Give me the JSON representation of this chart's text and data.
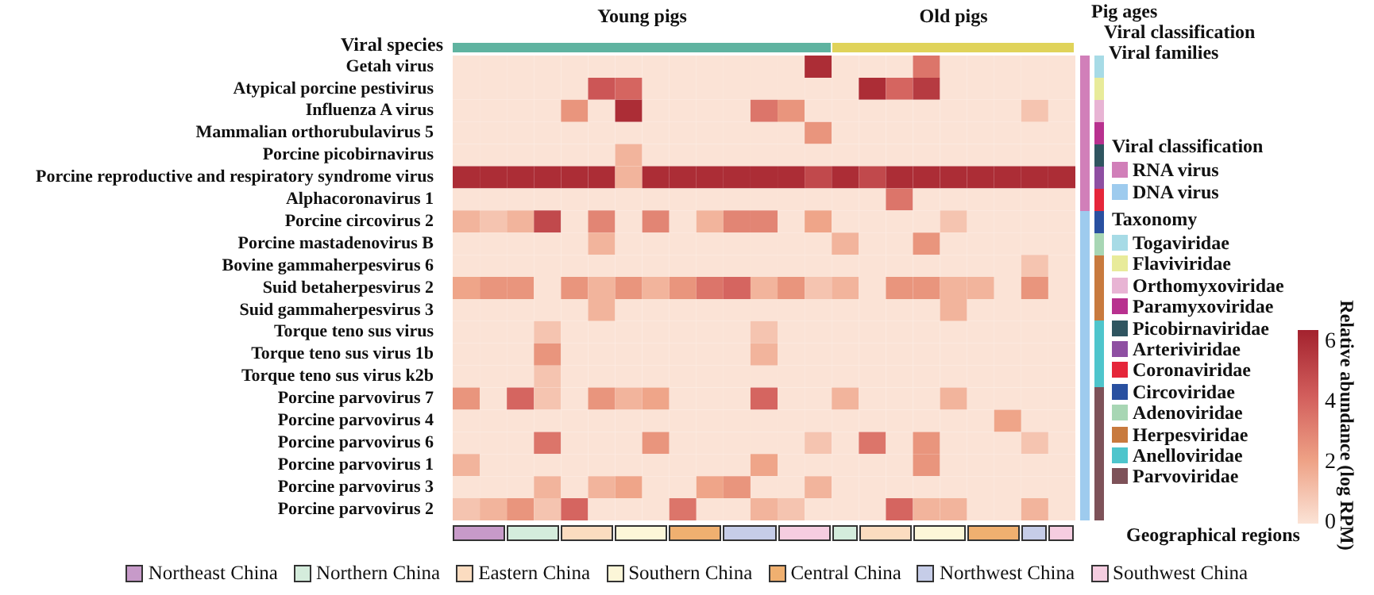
{
  "chart_data": [
    {
      "type": "heatmap",
      "ylabel": "Viral species",
      "clabel": "Relative abundance (log RPM)",
      "clim": [
        0,
        6.4
      ],
      "cticks": [
        0,
        2,
        4,
        6
      ],
      "categories": [
        null,
        null,
        null,
        null,
        null,
        null,
        null,
        null,
        null,
        null,
        null,
        null,
        null,
        null,
        null,
        null,
        null,
        null,
        null,
        null,
        null,
        null,
        null
      ],
      "y_categories": [
        "Getah virus",
        "Atypical porcine pestivirus",
        "Influenza A virus",
        "Mammalian orthorubulavirus 5",
        "Porcine picobirnavirus",
        "Porcine reproductive and respiratory syndrome virus",
        "Alphacoronavirus 1",
        "Porcine circovirus 2",
        "Porcine mastadenovirus B",
        "Bovine gammaherpesvirus 6",
        "Suid betaherpesvirus 2",
        "Suid gammaherpesvirus 3",
        "Torque teno sus virus",
        "Torque teno sus virus 1b",
        "Torque teno sus virus k2b",
        "Porcine parvovirus 7",
        "Porcine parvovirus 4",
        "Porcine parvovirus 6",
        "Porcine parvovirus 1",
        "Porcine parvovirus 3",
        "Porcine parvovirus 2"
      ],
      "cells": [
        [
          0,
          0,
          0,
          0,
          0,
          0,
          0,
          0,
          0,
          0,
          0,
          0,
          0,
          6,
          0,
          0,
          0,
          3.5,
          0,
          0,
          0,
          0,
          0
        ],
        [
          0,
          0,
          0,
          0,
          0,
          4.5,
          4,
          0,
          0,
          0,
          0,
          0,
          0,
          0,
          0,
          6,
          4,
          5.5,
          0,
          0,
          0,
          0,
          0
        ],
        [
          0,
          0,
          0,
          0,
          2.5,
          0,
          6,
          0,
          0,
          0,
          0,
          3.5,
          2.5,
          0,
          0,
          0,
          0,
          0,
          0,
          0,
          0,
          1,
          0
        ],
        [
          0,
          0,
          0,
          0,
          0,
          0,
          0,
          0,
          0,
          0,
          0,
          0,
          0,
          2.5,
          0,
          0,
          0,
          0,
          0,
          0,
          0,
          0,
          0
        ],
        [
          0,
          0,
          0,
          0,
          0,
          0,
          1.5,
          0,
          0,
          0,
          0,
          0,
          0,
          0,
          0,
          0,
          0,
          0,
          0,
          0,
          0,
          0,
          0
        ],
        [
          6,
          6,
          6,
          6,
          6,
          6,
          1.5,
          6,
          6,
          6,
          6,
          6,
          6,
          5,
          6,
          5,
          6,
          6,
          6,
          6,
          6,
          6,
          6
        ],
        [
          0,
          0,
          0,
          0,
          0,
          0,
          0,
          0,
          0,
          0,
          0,
          0,
          0,
          0,
          0,
          0,
          3.5,
          0,
          0,
          0,
          0,
          0,
          0
        ],
        [
          1.5,
          1,
          1.5,
          5,
          0,
          3,
          0,
          3,
          0,
          1.5,
          3,
          3,
          0,
          2,
          0,
          0,
          0,
          0,
          1,
          0,
          0,
          0,
          0
        ],
        [
          0,
          0,
          0,
          0,
          0,
          1.5,
          0,
          0,
          0,
          0,
          0,
          0,
          0,
          0,
          1.5,
          0,
          0,
          2.5,
          0,
          0,
          0,
          0,
          0
        ],
        [
          0,
          0,
          0,
          0,
          0,
          0,
          0,
          0,
          0,
          0,
          0,
          0,
          0,
          0,
          0,
          0,
          0,
          0,
          0,
          0,
          0,
          1,
          0
        ],
        [
          2,
          2.5,
          2.5,
          0,
          2.5,
          1.5,
          2.5,
          1.5,
          2.5,
          3.5,
          4,
          1.5,
          2.5,
          1,
          1.5,
          0,
          2.5,
          2.5,
          1.5,
          1.5,
          0,
          2.5,
          0
        ],
        [
          0,
          0,
          0,
          0,
          0,
          1.5,
          0,
          0,
          0,
          0,
          0,
          0,
          0,
          0,
          0,
          0,
          0,
          0,
          1.5,
          0,
          0,
          0,
          0
        ],
        [
          0,
          0,
          0,
          1,
          0,
          0,
          0,
          0,
          0,
          0,
          0,
          1,
          0,
          0,
          0,
          0,
          0,
          0,
          0,
          0,
          0,
          0,
          0
        ],
        [
          0,
          0,
          0,
          2.5,
          0,
          0,
          0,
          0,
          0,
          0,
          0,
          1.5,
          0,
          0,
          0,
          0,
          0,
          0,
          0,
          0,
          0,
          0,
          0
        ],
        [
          0,
          0,
          0,
          1,
          0,
          0,
          0,
          0,
          0,
          0,
          0,
          0,
          0,
          0,
          0,
          0,
          0,
          0,
          0,
          0,
          0,
          0,
          0
        ],
        [
          2.5,
          0,
          4,
          1,
          0,
          2.5,
          1.5,
          2,
          0,
          0,
          0,
          4,
          0,
          0,
          1.5,
          0,
          0,
          0,
          1.5,
          0,
          0,
          0,
          0
        ],
        [
          0,
          0,
          0,
          0,
          0,
          0,
          0,
          0,
          0,
          0,
          0,
          0,
          0,
          0,
          0,
          0,
          0,
          0,
          0,
          0,
          2,
          0,
          0
        ],
        [
          0,
          0,
          0,
          3.5,
          0,
          0,
          0,
          2.5,
          0,
          0,
          0,
          0,
          0,
          1,
          0,
          3.5,
          0,
          2.5,
          0,
          0,
          0,
          1,
          0
        ],
        [
          1.5,
          0,
          0,
          0,
          0,
          0,
          0,
          0,
          0,
          0,
          0,
          2,
          0,
          0,
          0,
          0,
          0,
          2.5,
          0,
          0,
          0,
          0,
          0
        ],
        [
          0,
          0,
          0,
          1.5,
          0,
          1.5,
          2,
          0,
          0,
          2,
          2.5,
          0,
          0,
          1.5,
          0,
          0,
          0,
          0,
          0,
          0,
          0,
          0,
          0
        ],
        [
          1,
          1.5,
          2.5,
          1,
          4,
          0,
          0,
          0,
          3.5,
          0,
          0,
          1.5,
          1,
          0,
          0,
          0,
          4,
          1.5,
          1.5,
          0,
          0,
          1.5,
          0
        ]
      ]
    },
    {
      "type": "other",
      "title": "Pig ages",
      "categories": [
        "Young pigs",
        "Old pigs"
      ],
      "colors": [
        "#5fb3a0",
        "#e0d35a"
      ]
    },
    {
      "type": "other",
      "title": "Viral classification",
      "categories": [
        "RNA virus",
        "DNA virus"
      ],
      "colors": [
        "#d17fb9",
        "#9ecbee"
      ]
    },
    {
      "type": "other",
      "title": "Taxonomy",
      "subtitle": "Viral families",
      "categories": [
        "Togaviridae",
        "Flaviviridae",
        "Orthomyxoviridae",
        "Paramyxoviridae",
        "Picobirnaviridae",
        "Arteriviridae",
        "Coronaviridae",
        "Circoviridae",
        "Adenoviridae",
        "Herpesviridae",
        "Anelloviridae",
        "Parvoviridae"
      ],
      "colors": [
        "#a7dbe6",
        "#e8eb9a",
        "#e8b4d4",
        "#b8318f",
        "#2f5560",
        "#8e4fa2",
        "#e5263a",
        "#2950a0",
        "#a8d6b4",
        "#c87a3e",
        "#4ec5cc",
        "#7e5259"
      ]
    },
    {
      "type": "other",
      "title": "Geographical regions",
      "categories": [
        "Northeast China",
        "Northern China",
        "Eastern China",
        "Southern China",
        "Central China",
        "Northwest China",
        "Southwest China"
      ],
      "colors": [
        "#c79ac9",
        "#d4ecdc",
        "#fbdcc0",
        "#fcf6d8",
        "#f0b070",
        "#c6cde8",
        "#f5cde0"
      ]
    }
  ]
}
